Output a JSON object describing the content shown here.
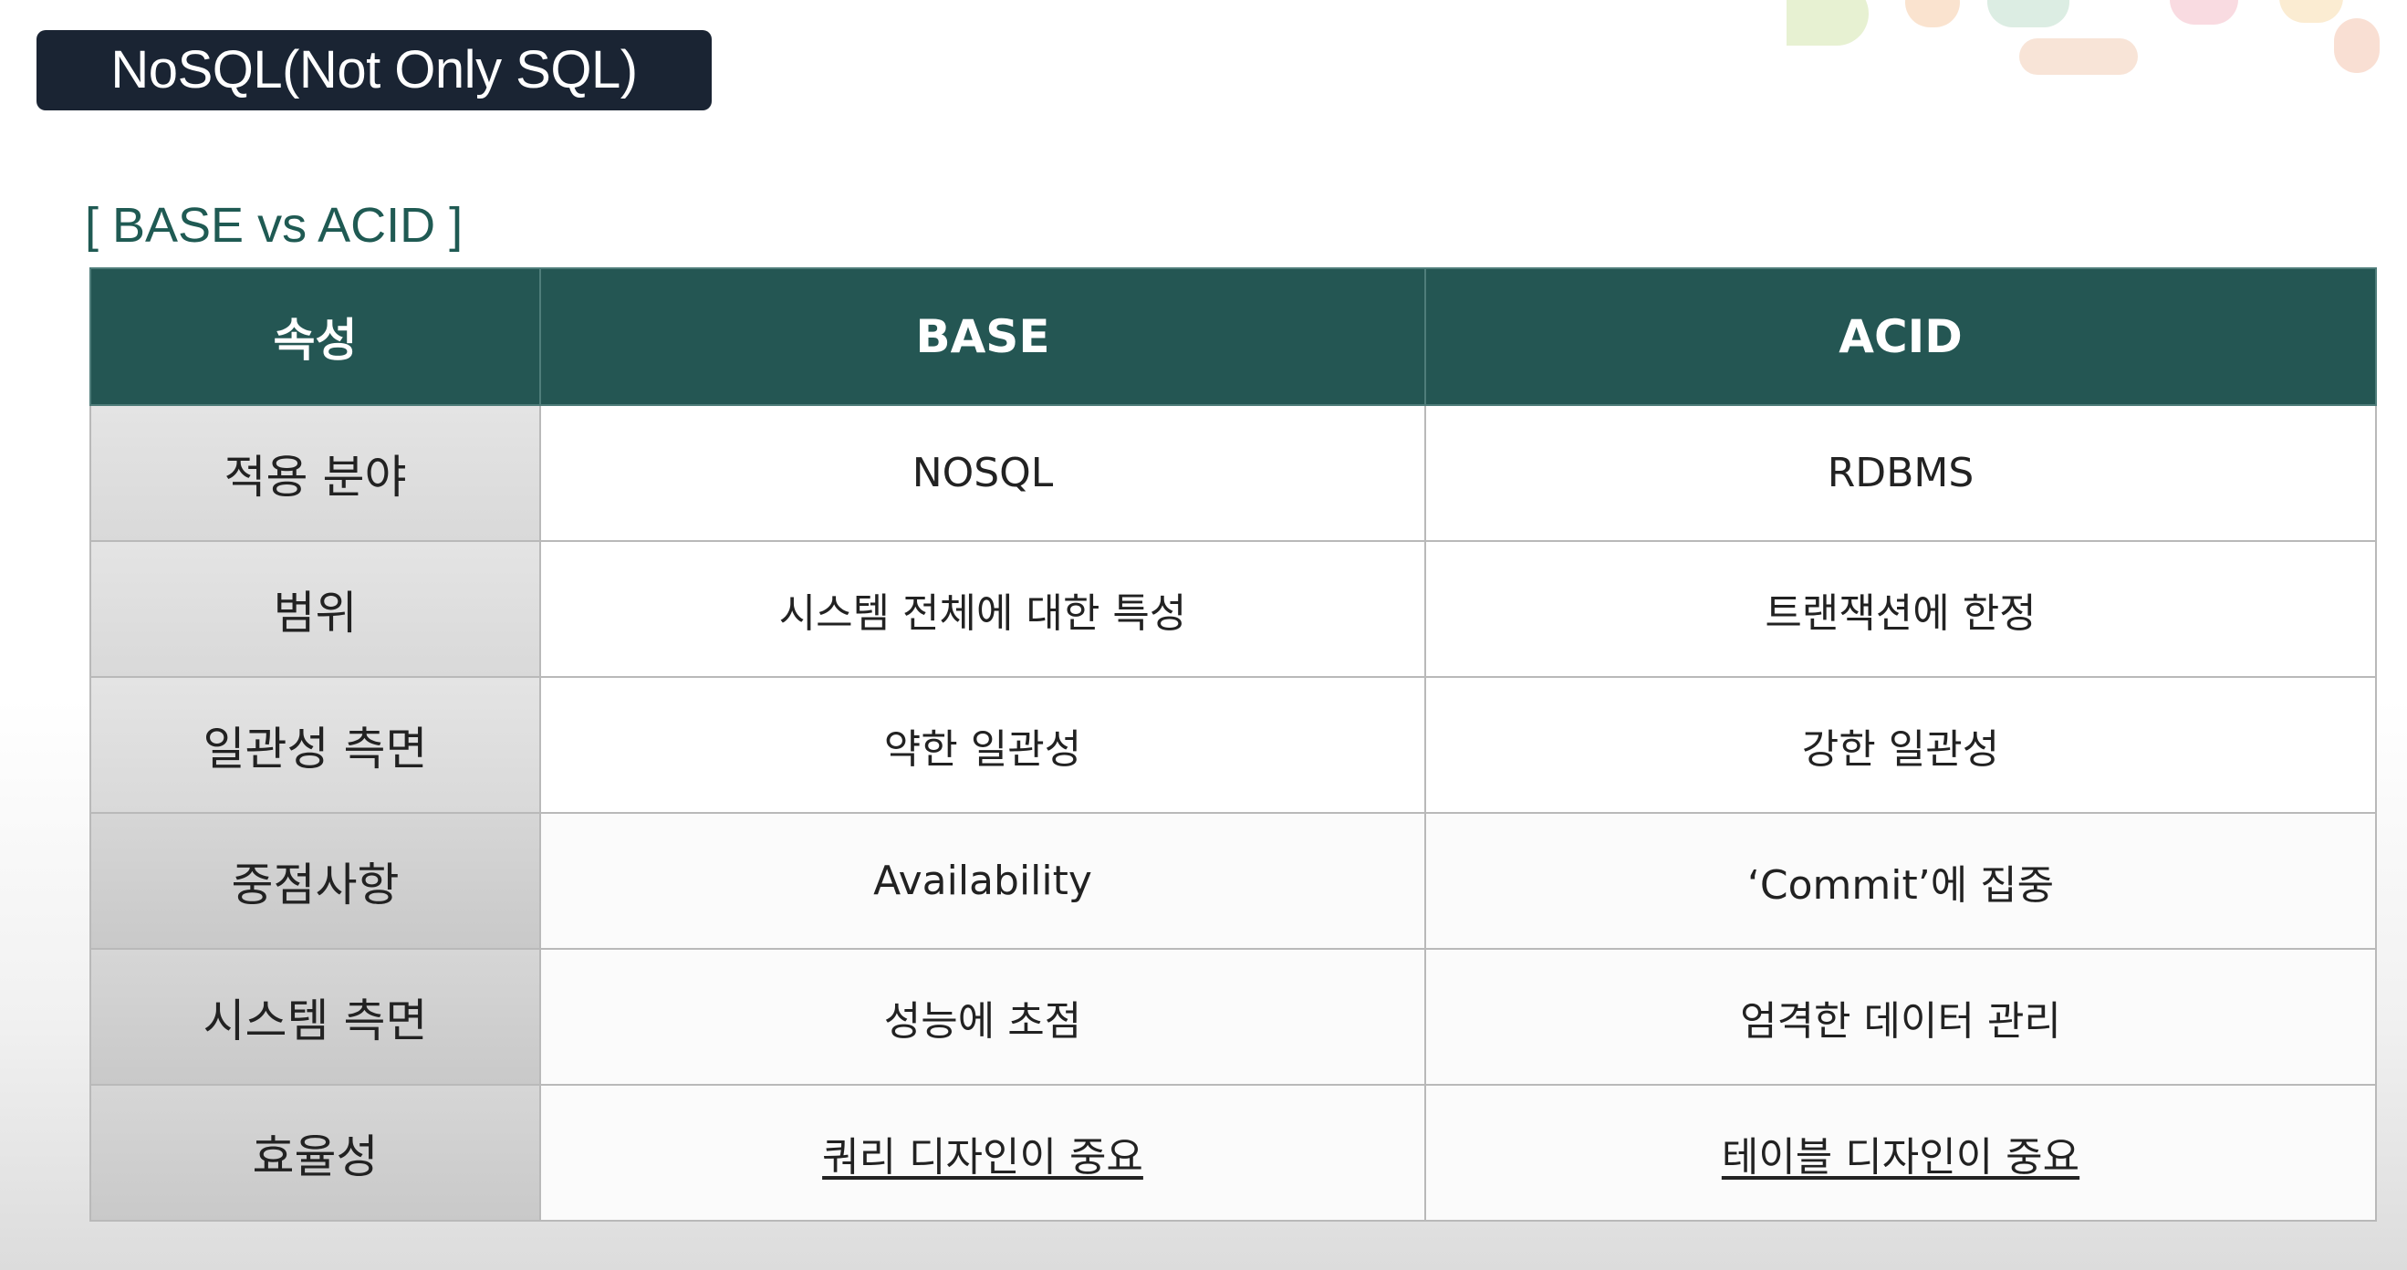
{
  "title": "NoSQL(Not Only SQL)",
  "section_label": "[ BASE vs ACID ]",
  "table": {
    "headers": [
      "속성",
      "BASE",
      "ACID"
    ],
    "rows": [
      {
        "attribute": "적용 분야",
        "base": "NOSQL",
        "acid": "RDBMS"
      },
      {
        "attribute": "범위",
        "base": "시스템 전체에 대한 특성",
        "acid": "트랜잭션에 한정"
      },
      {
        "attribute": "일관성 측면",
        "base": "약한 일관성",
        "acid": "강한 일관성"
      },
      {
        "attribute": "중점사항",
        "base": "Availability",
        "acid": "‘Commit’에 집중"
      },
      {
        "attribute": "시스템 측면",
        "base": "성능에 초점",
        "acid": "엄격한 데이터 관리"
      },
      {
        "attribute": "효율성",
        "base": "쿼리 디자인이 중요",
        "acid": "테이블 디자인이 중요"
      }
    ]
  },
  "colors": {
    "title_bg": "#1a2433",
    "header_bg": "#245653",
    "section_label": "#1f5a53",
    "attribute_cell_bg": "#dedede",
    "border": "#b9b9b9"
  }
}
